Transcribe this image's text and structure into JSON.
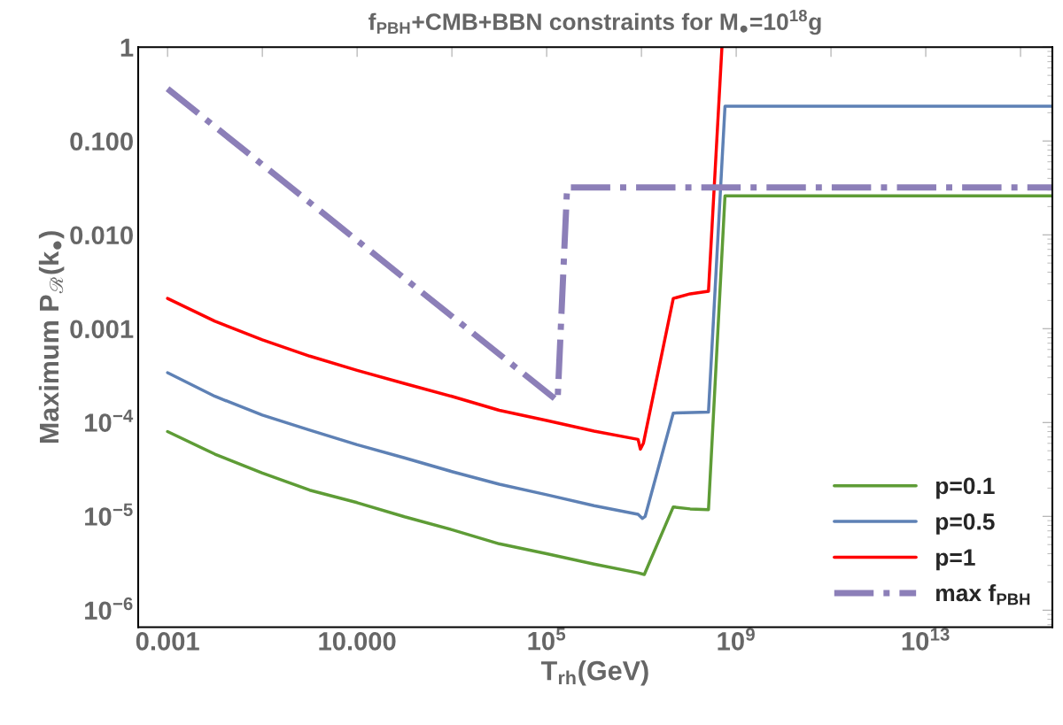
{
  "chart_data": {
    "type": "line",
    "title": "f$_{PBH}$+CMB+BBN constraints for M$_{●}$=10$^{18}$g",
    "xlabel": "T$_{rh}$(GeV)",
    "ylabel": "Maximum P$_{ℛ}$(k$_{●}$)",
    "log": "xy",
    "grid": false,
    "legend": "bottom right",
    "xlim": [
      0.00024,
      4700000000000000.0
    ],
    "ylim": [
      6.6e-07,
      1
    ],
    "xticks": [
      {
        "value": 0.001,
        "label": "0.001"
      },
      {
        "value": 0.1,
        "label": null
      },
      {
        "value": 10,
        "label": "10.000"
      },
      {
        "value": 1000,
        "label": null
      },
      {
        "value": 100000,
        "label": "10$^{5}$"
      },
      {
        "value": 10000000.0,
        "label": null
      },
      {
        "value": 1000000000.0,
        "label": "10$^{9}$"
      },
      {
        "value": 100000000000.0,
        "label": null
      },
      {
        "value": 10000000000000.0,
        "label": "10$^{13}$"
      },
      {
        "value": 1000000000000000.0,
        "label": null
      }
    ],
    "yticks": [
      {
        "value": 1e-06,
        "label": "10$^{−6}$"
      },
      {
        "value": 1e-05,
        "label": "10$^{−5}$"
      },
      {
        "value": 0.0001,
        "label": "10$^{−4}$"
      },
      {
        "value": 0.001,
        "label": "0.001"
      },
      {
        "value": 0.01,
        "label": "0.010"
      },
      {
        "value": 0.1,
        "label": "0.100"
      },
      {
        "value": 1,
        "label": "1"
      }
    ],
    "series": [
      {
        "name": "p=0.1",
        "color": "#5e9c36",
        "line_style": "solid",
        "x": [
          0.001,
          0.01,
          0.1,
          1,
          10,
          100,
          1000,
          10000,
          100000,
          1000000,
          8500000,
          11500000,
          47000000,
          107000000,
          260000000,
          580000000,
          4700000000000000.0
        ],
        "values": [
          8e-05,
          4.6e-05,
          2.9e-05,
          1.9e-05,
          1.4e-05,
          9.9e-06,
          7.2e-06,
          5.1e-06,
          4e-06,
          3.1e-06,
          2.5e-06,
          2.4e-06,
          1.26e-05,
          1.2e-05,
          1.18e-05,
          0.026,
          0.026
        ]
      },
      {
        "name": "p=0.5",
        "color": "#5e81b5",
        "line_style": "solid",
        "x": [
          0.001,
          0.01,
          0.1,
          1,
          10,
          100,
          1000,
          10000,
          100000,
          1000000,
          8500000,
          10500000,
          12000000,
          47000000,
          260000000,
          580000000,
          4700000000000000.0
        ],
        "values": [
          0.00034,
          0.00019,
          0.00012,
          8.3e-05,
          5.8e-05,
          4.2e-05,
          3e-05,
          2.2e-05,
          1.7e-05,
          1.3e-05,
          1.05e-05,
          9.5e-06,
          1e-05,
          0.000126,
          0.000129,
          0.234,
          0.234
        ]
      },
      {
        "name": "p=1",
        "color": "#ff0000",
        "line_style": "solid",
        "x": [
          0.001,
          0.01,
          0.1,
          1,
          10,
          100,
          1000,
          10000,
          100000,
          1000000,
          8500000,
          9500000,
          11000000,
          47000000,
          107000000,
          260000000,
          500000000
        ],
        "values": [
          0.0021,
          0.0012,
          0.00076,
          0.00051,
          0.00036,
          0.00026,
          0.00019,
          0.000135,
          0.000105,
          8.1e-05,
          6.6e-05,
          5.2e-05,
          6e-05,
          0.0021,
          0.00235,
          0.0025,
          1
        ]
      },
      {
        "name": "max f$_{PBH}$",
        "color": "#8c7fb8",
        "line_style": "dashdot",
        "x": [
          0.001,
          170000,
          270000,
          4700000000000000.0
        ],
        "values": [
          0.36,
          0.00017,
          0.032,
          0.032
        ]
      }
    ]
  }
}
